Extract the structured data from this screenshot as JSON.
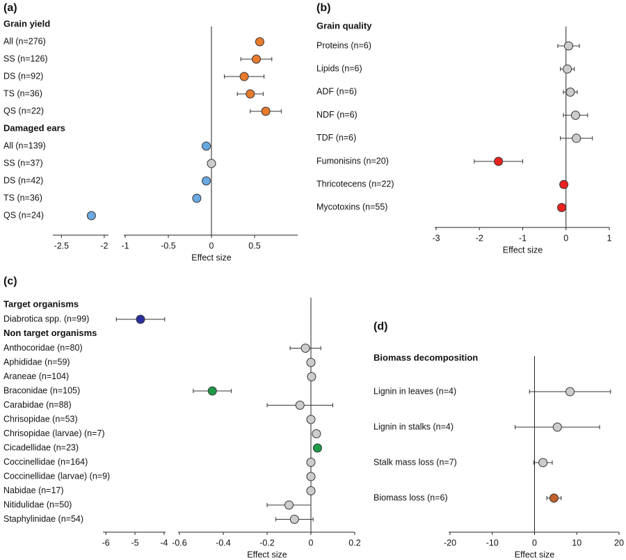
{
  "chart_data": [
    {
      "type": "forest",
      "panel": "(a)",
      "xlabel": "Effect size",
      "xlim": [
        -1,
        1
      ],
      "xticks": [
        -1,
        -0.5,
        0,
        0.5
      ],
      "xlim_left": [
        -2.6,
        -1.95
      ],
      "xticks_left": [
        -2.5,
        -2
      ],
      "groups": [
        {
          "name": "Grain yield",
          "categories": [
            "All (n=276)",
            "SS (n=126)",
            "DS (n=92)",
            "TS (n=36)",
            "QS (n=22)"
          ],
          "values": [
            0.56,
            0.52,
            0.38,
            0.45,
            0.63
          ],
          "errors": [
            0,
            0.18,
            0.23,
            0.15,
            0.18
          ],
          "colors": [
            "#e87a2c",
            "#e87a2c",
            "#e87a2c",
            "#e87a2c",
            "#e87a2c"
          ]
        },
        {
          "name": "Damaged ears",
          "categories": [
            "All (n=139)",
            "SS (n=37)",
            "DS (n=42)",
            "TS (n=36)",
            "QS (n=24)"
          ],
          "values": [
            -0.06,
            0,
            -0.06,
            -0.17,
            -2.15
          ],
          "errors": [
            0,
            0,
            0,
            0,
            0
          ],
          "colors": [
            "#6aa9e0",
            "#cccccc",
            "#6aa9e0",
            "#6aa9e0",
            "#6aa9e0"
          ]
        }
      ]
    },
    {
      "type": "forest",
      "panel": "(b)",
      "xlabel": "Effect size",
      "xlim": [
        -3,
        1
      ],
      "xticks": [
        -3,
        -2,
        -1,
        0,
        1
      ],
      "groups": [
        {
          "name": "Grain quality",
          "categories": [
            "Proteins (n=6)",
            "Lipids (n=6)",
            "ADF (n=6)",
            "NDF (n=6)",
            "TDF (n=6)",
            "Fumonisins (n=20)",
            "Thricotecens (n=22)",
            "Mycotoxins (n=55)"
          ],
          "values": [
            0.06,
            0.03,
            0.1,
            0.22,
            0.24,
            -1.56,
            -0.05,
            -0.1
          ],
          "errors": [
            0.25,
            0.16,
            0.16,
            0.28,
            0.37,
            0.56,
            0,
            0
          ],
          "colors": [
            "#cccccc",
            "#cccccc",
            "#cccccc",
            "#cccccc",
            "#cccccc",
            "#e8231f",
            "#e8231f",
            "#e8231f"
          ]
        }
      ]
    },
    {
      "type": "forest",
      "panel": "(c)",
      "xlabel": "Effect size",
      "xlim": [
        -0.6,
        0.2
      ],
      "xticks": [
        -0.6,
        -0.4,
        -0.2,
        0,
        0.2
      ],
      "xlim_left": [
        -6.1,
        -3.95
      ],
      "xticks_left": [
        -6,
        -5,
        -4
      ],
      "groups": [
        {
          "name": "Target organisms",
          "categories": [
            "Diabrotica spp. (n=99)"
          ],
          "values": [
            -4.81
          ],
          "errors": [
            0.83
          ],
          "colors": [
            "#2a2ea0"
          ]
        },
        {
          "name": "Non target organisms",
          "categories": [
            "Anthocoridae (n=80)",
            "Aphididae (n=59)",
            "Araneae (n=104)",
            "Braconidae (n=105)",
            "Carabidae (n=88)",
            "Chrisopidae (n=53)",
            "Chrisopidae (larvae) (n=7)",
            "Cicadellidae (n=23)",
            "Coccinellidae (n=164)",
            "Coccinellidae (larvae) (n=9)",
            "Nabidae (n=17)",
            "Nitidulidae (n=50)",
            "Staphylinidae (n=54)"
          ],
          "values": [
            -0.025,
            0,
            0.003,
            -0.45,
            -0.05,
            0,
            0.025,
            0.03,
            0,
            0,
            0,
            -0.1,
            -0.075
          ],
          "errors": [
            0.07,
            0,
            0,
            0.087,
            0.15,
            0,
            0.01,
            0.01,
            0,
            0,
            0,
            0.1,
            0.085
          ],
          "colors": [
            "#cccccc",
            "#cccccc",
            "#cccccc",
            "#1f9a47",
            "#cccccc",
            "#cccccc",
            "#cccccc",
            "#1f9a47",
            "#cccccc",
            "#cccccc",
            "#cccccc",
            "#cccccc",
            "#cccccc"
          ]
        }
      ]
    },
    {
      "type": "forest",
      "panel": "(d)",
      "xlabel": "Effect size",
      "xlim": [
        -20,
        20
      ],
      "xticks": [
        -20,
        -10,
        0,
        10,
        20
      ],
      "groups": [
        {
          "name": "Biomass decomposition",
          "categories": [
            "Lignin in leaves (n=4)",
            "Lignin in stalks (n=4)",
            "Stalk mass loss (n=7)",
            "Biomass loss (n=6)"
          ],
          "values": [
            8.4,
            5.4,
            2,
            4.6
          ],
          "errors": [
            9.6,
            10,
            2.2,
            1.7
          ],
          "colors": [
            "#cccccc",
            "#cccccc",
            "#cccccc",
            "#c0602a"
          ]
        }
      ]
    }
  ]
}
